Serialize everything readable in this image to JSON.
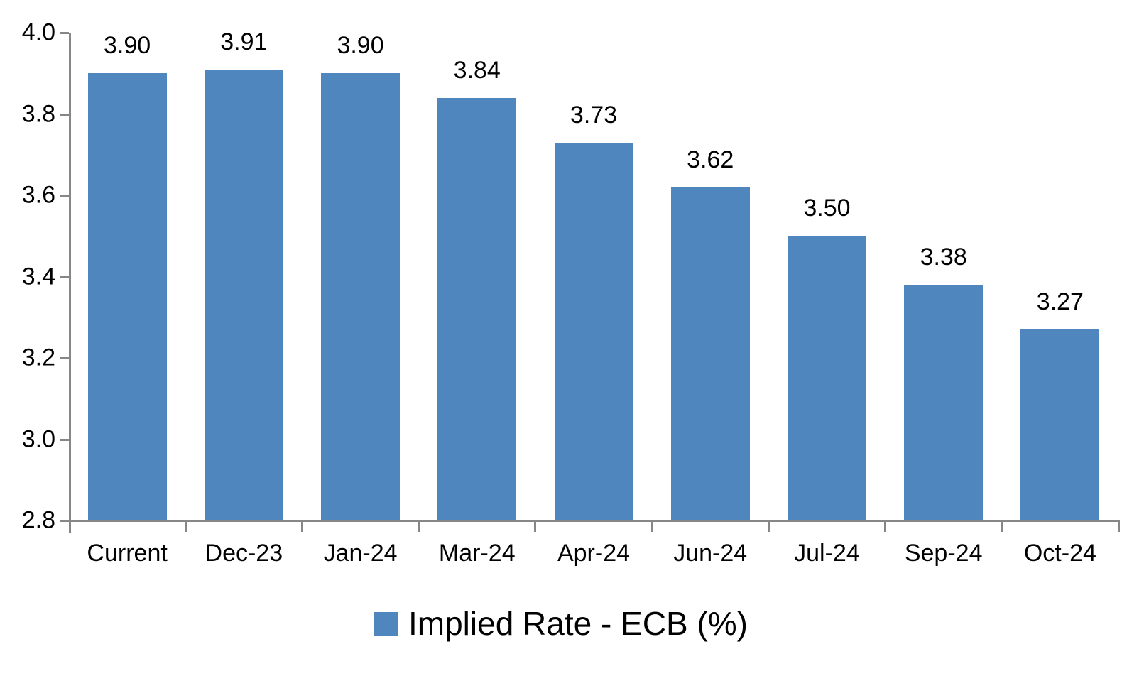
{
  "chart_data": {
    "type": "bar",
    "categories": [
      "Current",
      "Dec-23",
      "Jan-24",
      "Mar-24",
      "Apr-24",
      "Jun-24",
      "Jul-24",
      "Sep-24",
      "Oct-24"
    ],
    "values": [
      3.9,
      3.91,
      3.9,
      3.84,
      3.73,
      3.62,
      3.5,
      3.38,
      3.27
    ],
    "data_labels": [
      "3.90",
      "3.91",
      "3.90",
      "3.84",
      "3.73",
      "3.62",
      "3.50",
      "3.38",
      "3.27"
    ],
    "y_ticks": [
      2.8,
      3.0,
      3.2,
      3.4,
      3.6,
      3.8,
      4.0
    ],
    "y_tick_labels": [
      "2.8",
      "3.0",
      "3.2",
      "3.4",
      "3.6",
      "3.8",
      "4.0"
    ],
    "ylim": [
      2.8,
      4.0
    ],
    "grid": false,
    "legend": {
      "label": "Implied Rate - ECB (%)",
      "position": "bottom"
    },
    "colors": {
      "bar": "#4E86BD",
      "axis": "#878787",
      "text": "#000000"
    }
  }
}
